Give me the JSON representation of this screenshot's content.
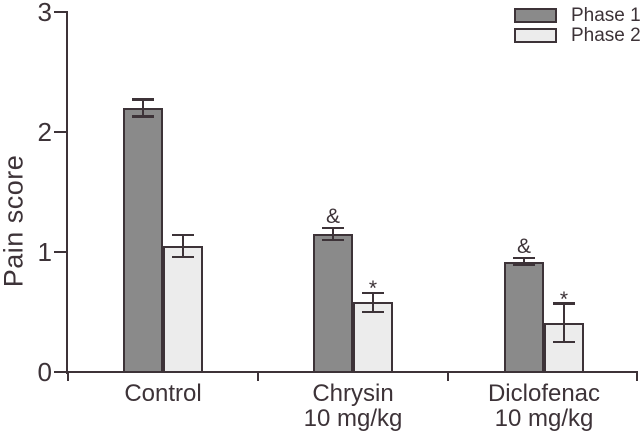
{
  "figure": {
    "background": "#ffffff",
    "ink_color": "#3d3338"
  },
  "chart_data": {
    "type": "bar",
    "title": "",
    "xlabel": "",
    "ylabel": "Pain score",
    "ylim": [
      0,
      3
    ],
    "yticks": [
      0,
      1,
      2,
      3
    ],
    "grid": false,
    "legend_position": "top-right",
    "categories": [
      {
        "label": "Control",
        "sublabel": ""
      },
      {
        "label": "Chrysin",
        "sublabel": "10 mg/kg"
      },
      {
        "label": "Diclofenac",
        "sublabel": "10 mg/kg"
      }
    ],
    "series": [
      {
        "name": "Phase 1",
        "fill": "#8a8a8a",
        "values": [
          2.2,
          1.15,
          0.92
        ],
        "errors": [
          0.07,
          0.05,
          0.03
        ],
        "annotations": [
          "",
          "&",
          "&"
        ]
      },
      {
        "name": "Phase 2",
        "fill": "#ececec",
        "values": [
          1.05,
          0.58,
          0.41
        ],
        "errors": [
          0.09,
          0.08,
          0.16
        ],
        "annotations": [
          "",
          "*",
          "*"
        ]
      }
    ]
  }
}
